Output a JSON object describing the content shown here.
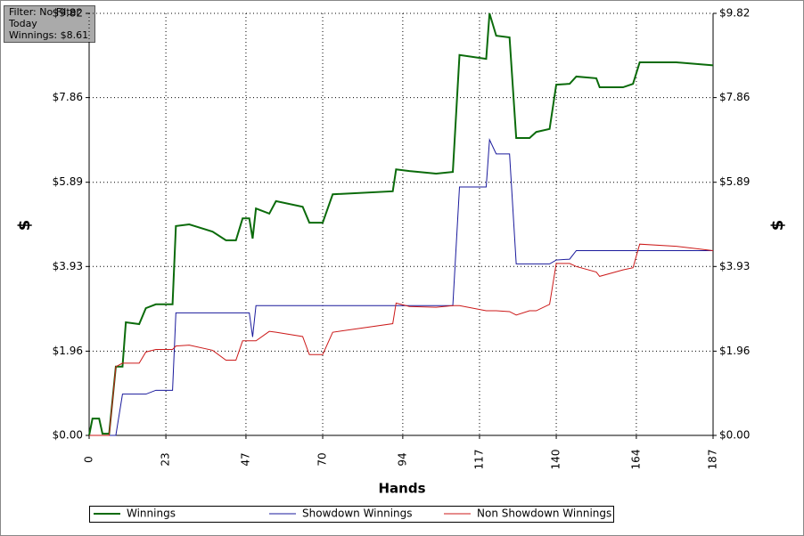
{
  "chart_data": {
    "type": "line",
    "annotations": [
      "Filter: No Filter",
      "Today",
      "Winnings: $8.61"
    ],
    "xlabel": "Hands",
    "ylabel": "$",
    "y2label": "$",
    "x": [
      0,
      1,
      3,
      4,
      6,
      8,
      10,
      11,
      15,
      17,
      20,
      25,
      26,
      30,
      37,
      41,
      44,
      46,
      48,
      49,
      50,
      54,
      56,
      64,
      66,
      70,
      73,
      91,
      92,
      96,
      104,
      109,
      111,
      119,
      120,
      122,
      126,
      128,
      132,
      134,
      138,
      140,
      144,
      146,
      152,
      153,
      160,
      163,
      165,
      176,
      187
    ],
    "series": [
      {
        "name": "Winnings",
        "color": "#0b6b0b",
        "width": 2,
        "values": [
          0,
          0.39,
          0.39,
          0.04,
          0.04,
          1.6,
          1.6,
          2.63,
          2.59,
          2.96,
          3.05,
          3.05,
          4.87,
          4.91,
          4.74,
          4.54,
          4.54,
          5.05,
          5.05,
          4.58,
          5.28,
          5.16,
          5.45,
          5.32,
          4.95,
          4.95,
          5.61,
          5.68,
          6.19,
          6.15,
          6.09,
          6.13,
          8.85,
          8.76,
          9.82,
          9.3,
          9.26,
          6.92,
          6.92,
          7.06,
          7.13,
          8.16,
          8.18,
          8.35,
          8.31,
          8.1,
          8.1,
          8.18,
          8.68,
          8.68,
          8.61
        ]
      },
      {
        "name": "Showdown Winnings",
        "color": "#1a1a9c",
        "width": 1,
        "values": [
          0,
          0,
          0,
          0,
          0,
          0,
          0.96,
          0.96,
          0.96,
          0.96,
          1.05,
          1.05,
          2.85,
          2.85,
          2.85,
          2.85,
          2.85,
          2.85,
          2.85,
          2.29,
          3.02,
          3.02,
          3.02,
          3.02,
          3.02,
          3.02,
          3.02,
          3.02,
          3.02,
          3.02,
          3.02,
          3.02,
          5.78,
          5.78,
          6.88,
          6.55,
          6.55,
          3.99,
          3.99,
          3.99,
          3.99,
          4.08,
          4.1,
          4.3,
          4.3,
          4.3,
          4.3,
          4.3,
          4.3,
          4.3,
          4.3
        ]
      },
      {
        "name": "Non Showdown Winnings",
        "color": "#cc1a1a",
        "width": 1,
        "values": [
          0,
          0,
          0,
          0,
          0,
          1.6,
          1.68,
          1.68,
          1.68,
          1.94,
          2.0,
          2.0,
          2.08,
          2.1,
          1.98,
          1.75,
          1.75,
          2.2,
          2.2,
          2.2,
          2.2,
          2.42,
          2.4,
          2.3,
          1.88,
          1.88,
          2.4,
          2.6,
          3.08,
          3.0,
          2.98,
          3.02,
          3.02,
          2.9,
          2.9,
          2.9,
          2.88,
          2.8,
          2.9,
          2.9,
          3.05,
          4.0,
          4.0,
          3.93,
          3.8,
          3.7,
          3.85,
          3.9,
          4.45,
          4.4,
          4.3
        ]
      }
    ],
    "xlim": [
      0,
      187
    ],
    "xticks": [
      0,
      23,
      47,
      70,
      94,
      117,
      140,
      164,
      187
    ],
    "ylim": [
      0,
      9.82
    ],
    "yticks": [
      {
        "value": 0,
        "label": "$0.00"
      },
      {
        "value": 1.96,
        "label": "$1.96"
      },
      {
        "value": 3.93,
        "label": "$3.93"
      },
      {
        "value": 5.89,
        "label": "$5.89"
      },
      {
        "value": 7.86,
        "label": "$7.86"
      },
      {
        "value": 9.82,
        "label": "$9.82"
      }
    ],
    "y2lim": [
      0,
      9.82
    ],
    "y2ticks": [
      {
        "value": 0,
        "label": "$0.00"
      },
      {
        "value": 1.96,
        "label": "$1.96"
      },
      {
        "value": 3.93,
        "label": "$3.93"
      },
      {
        "value": 5.89,
        "label": "$5.89"
      },
      {
        "value": 7.86,
        "label": "$7.86"
      },
      {
        "value": 9.82,
        "label": "$9.82"
      }
    ],
    "grid": true
  }
}
